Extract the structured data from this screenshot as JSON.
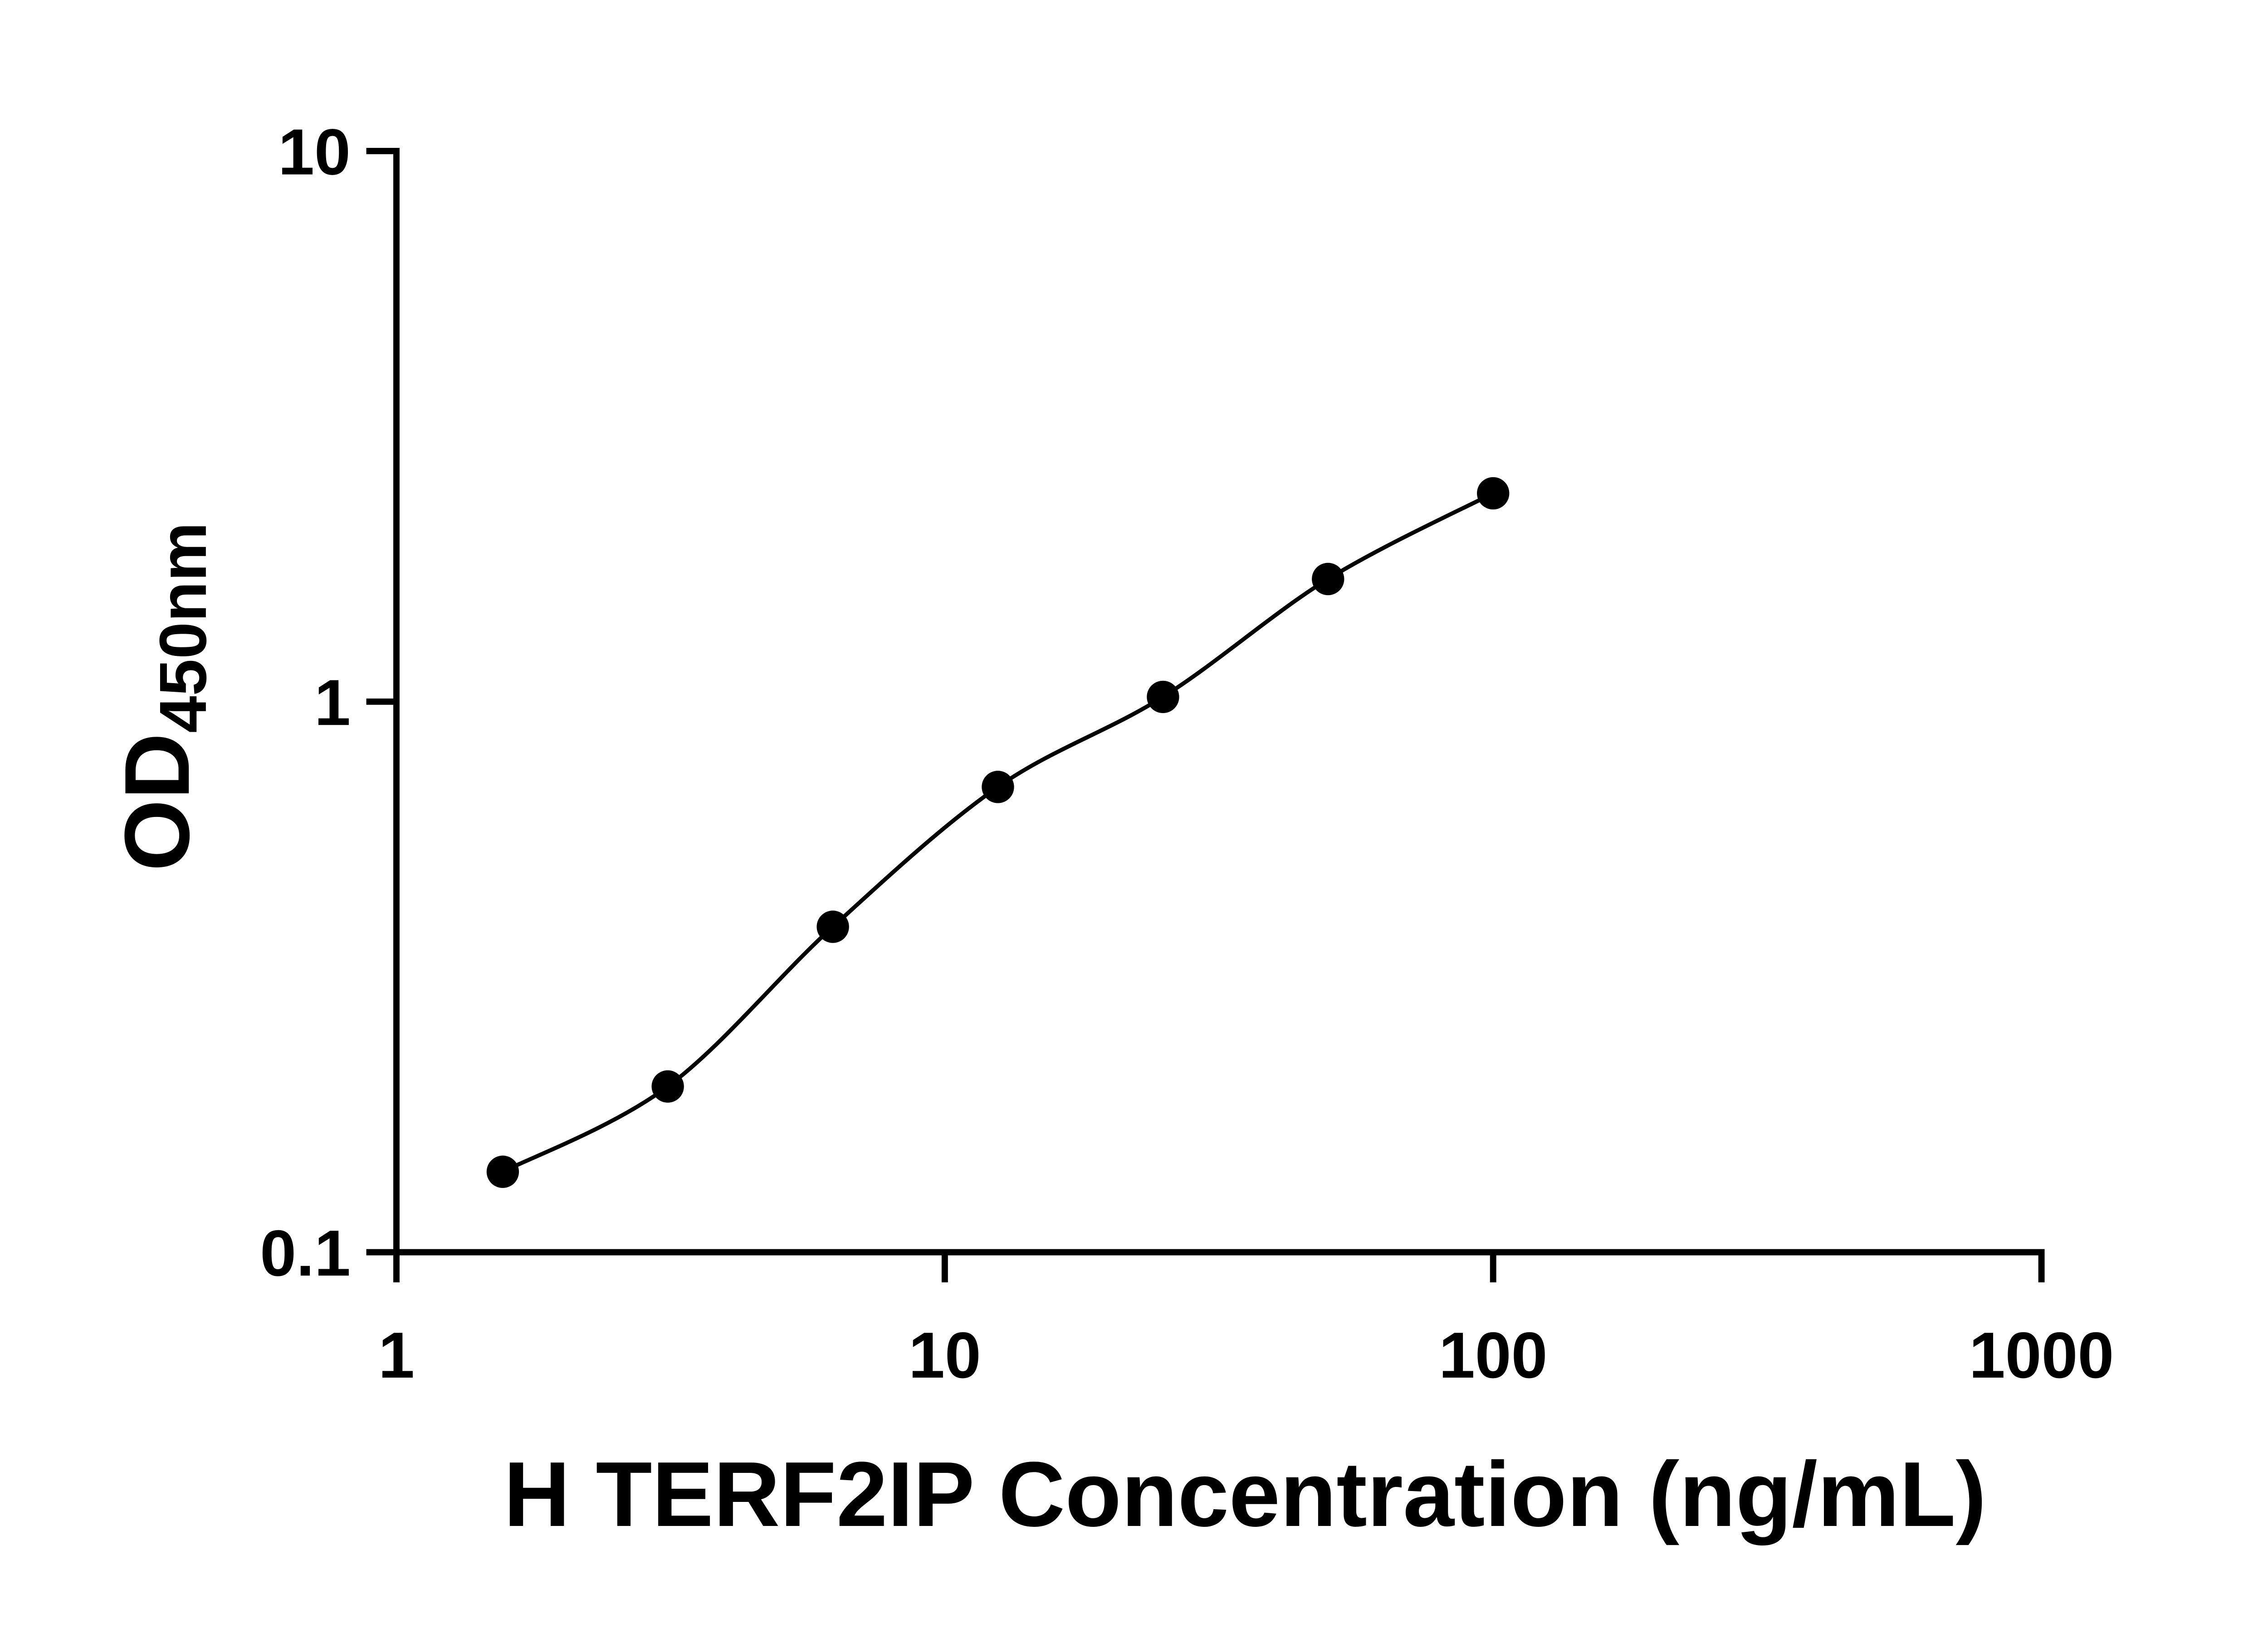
{
  "chart_data": {
    "type": "scatter",
    "curve": "smooth",
    "xlabel": "H TERF2IP Concentration (ng/mL)",
    "ylabel": "OD",
    "ylabel_sub": "450nm",
    "x_scale": "log10",
    "y_scale": "log10",
    "xlim": [
      1,
      1000
    ],
    "ylim": [
      0.1,
      10
    ],
    "x_ticks": [
      {
        "v": 1,
        "label": "1"
      },
      {
        "v": 10,
        "label": "10"
      },
      {
        "v": 100,
        "label": "100"
      },
      {
        "v": 1000,
        "label": "1000"
      }
    ],
    "y_ticks": [
      {
        "v": 0.1,
        "label": "0.1"
      },
      {
        "v": 1,
        "label": "1"
      },
      {
        "v": 10,
        "label": "10"
      }
    ],
    "x": [
      1.563,
      3.125,
      6.25,
      12.5,
      25,
      50,
      100
    ],
    "y": [
      0.14,
      0.2,
      0.39,
      0.7,
      1.02,
      1.67,
      2.39
    ],
    "marker": "filled-circle",
    "color": "#000000",
    "grid": false,
    "legend": false
  }
}
